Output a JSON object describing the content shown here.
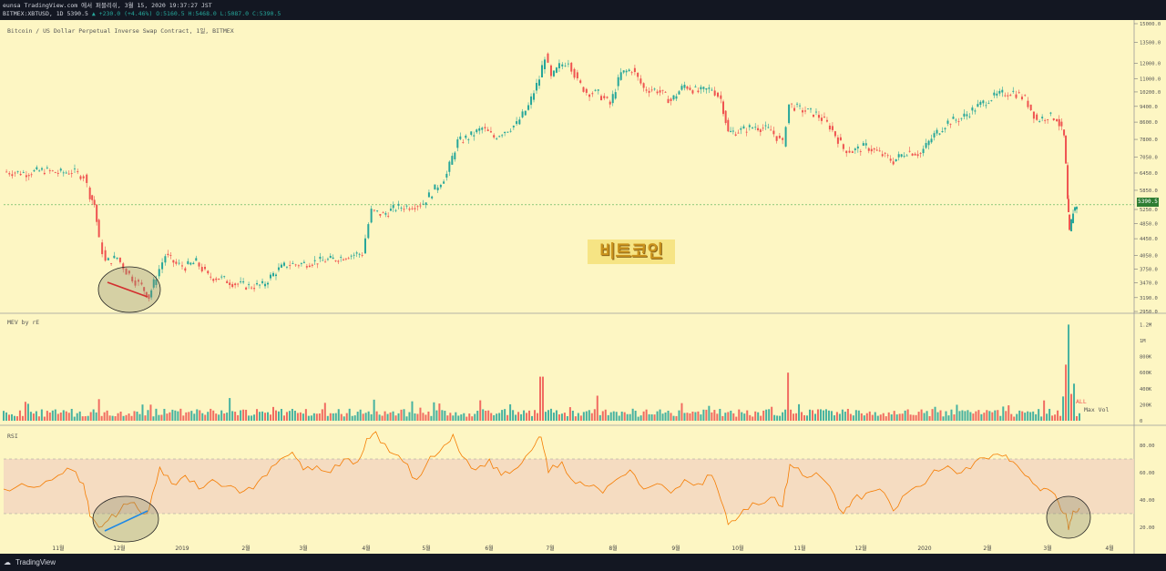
{
  "header": {
    "line1": "eunsa TradingView.com 에서 퍼블리쉬, 3월 15, 2020 19:37:27 JST",
    "symbol": "BITMEX:XBTUSD, 1D 5390.5",
    "change": "▲ +230.0 (+4.46%)",
    "ohlc": "O:5160.5 H:5468.0 L:5087.0 C:5390.5"
  },
  "chart_data": {
    "type": "candlestick",
    "title": "Bitcoin / US Dollar Perpetual Inverse Swap Contract, 1일, BITMEX",
    "last_price": "5390.5",
    "watermark": "비트코인",
    "price_axis_ticks": [
      "15000.0",
      "13500.0",
      "12000.0",
      "11000.0",
      "10200.0",
      "9400.0",
      "8600.0",
      "7800.0",
      "7050.0",
      "6450.0",
      "5850.0",
      "5250.0",
      "4850.0",
      "4450.0",
      "4050.0",
      "3750.0",
      "3470.0",
      "3190.0",
      "2950.0"
    ],
    "price_close_series": [
      {
        "t": 0,
        "v": 6500
      },
      {
        "t": 25,
        "v": 6450
      },
      {
        "t": 45,
        "v": 6550
      },
      {
        "t": 60,
        "v": 6450
      },
      {
        "t": 75,
        "v": 6500
      },
      {
        "t": 88,
        "v": 6350
      },
      {
        "t": 95,
        "v": 5700
      },
      {
        "t": 100,
        "v": 5400
      },
      {
        "t": 105,
        "v": 4400
      },
      {
        "t": 112,
        "v": 3900
      },
      {
        "t": 125,
        "v": 4000
      },
      {
        "t": 135,
        "v": 3700
      },
      {
        "t": 145,
        "v": 3500
      },
      {
        "t": 152,
        "v": 3400
      },
      {
        "t": 160,
        "v": 3200
      },
      {
        "t": 168,
        "v": 3600
      },
      {
        "t": 178,
        "v": 4050
      },
      {
        "t": 190,
        "v": 3850
      },
      {
        "t": 200,
        "v": 3800
      },
      {
        "t": 212,
        "v": 3900
      },
      {
        "t": 225,
        "v": 3600
      },
      {
        "t": 240,
        "v": 3550
      },
      {
        "t": 255,
        "v": 3450
      },
      {
        "t": 270,
        "v": 3400
      },
      {
        "t": 285,
        "v": 3420
      },
      {
        "t": 300,
        "v": 3700
      },
      {
        "t": 312,
        "v": 3850
      },
      {
        "t": 325,
        "v": 3850
      },
      {
        "t": 340,
        "v": 3900
      },
      {
        "t": 360,
        "v": 3950
      },
      {
        "t": 380,
        "v": 4050
      },
      {
        "t": 395,
        "v": 4100
      },
      {
        "t": 405,
        "v": 5200
      },
      {
        "t": 418,
        "v": 5100
      },
      {
        "t": 432,
        "v": 5300
      },
      {
        "t": 447,
        "v": 5350
      },
      {
        "t": 462,
        "v": 5450
      },
      {
        "t": 475,
        "v": 5900
      },
      {
        "t": 488,
        "v": 6400
      },
      {
        "t": 500,
        "v": 7700
      },
      {
        "t": 512,
        "v": 7900
      },
      {
        "t": 527,
        "v": 8300
      },
      {
        "t": 540,
        "v": 7900
      },
      {
        "t": 552,
        "v": 8200
      },
      {
        "t": 565,
        "v": 8500
      },
      {
        "t": 578,
        "v": 9400
      },
      {
        "t": 590,
        "v": 11000
      },
      {
        "t": 596,
        "v": 12500
      },
      {
        "t": 603,
        "v": 11000
      },
      {
        "t": 612,
        "v": 11800
      },
      {
        "t": 622,
        "v": 12200
      },
      {
        "t": 632,
        "v": 10800
      },
      {
        "t": 642,
        "v": 10200
      },
      {
        "t": 655,
        "v": 10100
      },
      {
        "t": 668,
        "v": 9500
      },
      {
        "t": 680,
        "v": 11300
      },
      {
        "t": 692,
        "v": 11600
      },
      {
        "t": 705,
        "v": 10400
      },
      {
        "t": 720,
        "v": 10300
      },
      {
        "t": 735,
        "v": 9700
      },
      {
        "t": 750,
        "v": 10600
      },
      {
        "t": 765,
        "v": 10200
      },
      {
        "t": 780,
        "v": 10400
      },
      {
        "t": 790,
        "v": 9800
      },
      {
        "t": 798,
        "v": 8100
      },
      {
        "t": 812,
        "v": 8200
      },
      {
        "t": 828,
        "v": 8400
      },
      {
        "t": 845,
        "v": 8200
      },
      {
        "t": 858,
        "v": 7600
      },
      {
        "t": 865,
        "v": 9500
      },
      {
        "t": 880,
        "v": 9200
      },
      {
        "t": 895,
        "v": 9000
      },
      {
        "t": 910,
        "v": 8400
      },
      {
        "t": 925,
        "v": 7400
      },
      {
        "t": 935,
        "v": 7300
      },
      {
        "t": 950,
        "v": 7500
      },
      {
        "t": 965,
        "v": 7200
      },
      {
        "t": 980,
        "v": 6900
      },
      {
        "t": 995,
        "v": 7300
      },
      {
        "t": 1010,
        "v": 7200
      },
      {
        "t": 1025,
        "v": 8000
      },
      {
        "t": 1040,
        "v": 8600
      },
      {
        "t": 1055,
        "v": 8800
      },
      {
        "t": 1070,
        "v": 9300
      },
      {
        "t": 1085,
        "v": 9800
      },
      {
        "t": 1100,
        "v": 10100
      },
      {
        "t": 1112,
        "v": 10200
      },
      {
        "t": 1125,
        "v": 9800
      },
      {
        "t": 1138,
        "v": 8700
      },
      {
        "t": 1150,
        "v": 8900
      },
      {
        "t": 1160,
        "v": 8800
      },
      {
        "t": 1168,
        "v": 7900
      },
      {
        "t": 1172,
        "v": 5500
      },
      {
        "t": 1174,
        "v": 4600
      },
      {
        "t": 1178,
        "v": 5200
      },
      {
        "t": 1182,
        "v": 5390
      }
    ],
    "volume_label": "MEV by rE",
    "volume_axis_ticks": [
      "1.2M",
      "1M",
      "800K",
      "600K",
      "400K",
      "200K",
      "0"
    ],
    "volume_badge": "ALL",
    "volume_peak_label": "Max Vol",
    "rsi_label": "RSI",
    "rsi_axis_ticks": [
      "80.00",
      "60.00",
      "40.00",
      "20.00"
    ],
    "rsi_band": [
      30,
      70
    ],
    "rsi_series": [
      {
        "t": 0,
        "v": 48
      },
      {
        "t": 20,
        "v": 52
      },
      {
        "t": 40,
        "v": 50
      },
      {
        "t": 60,
        "v": 58
      },
      {
        "t": 75,
        "v": 62
      },
      {
        "t": 88,
        "v": 52
      },
      {
        "t": 95,
        "v": 28
      },
      {
        "t": 105,
        "v": 20
      },
      {
        "t": 115,
        "v": 25
      },
      {
        "t": 128,
        "v": 32
      },
      {
        "t": 140,
        "v": 38
      },
      {
        "t": 152,
        "v": 30
      },
      {
        "t": 160,
        "v": 33
      },
      {
        "t": 172,
        "v": 64
      },
      {
        "t": 185,
        "v": 52
      },
      {
        "t": 200,
        "v": 58
      },
      {
        "t": 215,
        "v": 48
      },
      {
        "t": 230,
        "v": 55
      },
      {
        "t": 245,
        "v": 50
      },
      {
        "t": 260,
        "v": 45
      },
      {
        "t": 275,
        "v": 48
      },
      {
        "t": 290,
        "v": 58
      },
      {
        "t": 305,
        "v": 70
      },
      {
        "t": 318,
        "v": 75
      },
      {
        "t": 330,
        "v": 62
      },
      {
        "t": 345,
        "v": 65
      },
      {
        "t": 360,
        "v": 60
      },
      {
        "t": 375,
        "v": 70
      },
      {
        "t": 390,
        "v": 68
      },
      {
        "t": 400,
        "v": 85
      },
      {
        "t": 410,
        "v": 90
      },
      {
        "t": 425,
        "v": 75
      },
      {
        "t": 440,
        "v": 68
      },
      {
        "t": 455,
        "v": 55
      },
      {
        "t": 470,
        "v": 72
      },
      {
        "t": 485,
        "v": 80
      },
      {
        "t": 495,
        "v": 88
      },
      {
        "t": 505,
        "v": 72
      },
      {
        "t": 520,
        "v": 62
      },
      {
        "t": 535,
        "v": 70
      },
      {
        "t": 548,
        "v": 58
      },
      {
        "t": 562,
        "v": 62
      },
      {
        "t": 575,
        "v": 72
      },
      {
        "t": 585,
        "v": 80
      },
      {
        "t": 592,
        "v": 86
      },
      {
        "t": 600,
        "v": 60
      },
      {
        "t": 615,
        "v": 68
      },
      {
        "t": 630,
        "v": 52
      },
      {
        "t": 645,
        "v": 50
      },
      {
        "t": 660,
        "v": 45
      },
      {
        "t": 675,
        "v": 55
      },
      {
        "t": 690,
        "v": 62
      },
      {
        "t": 705,
        "v": 48
      },
      {
        "t": 720,
        "v": 52
      },
      {
        "t": 735,
        "v": 45
      },
      {
        "t": 750,
        "v": 55
      },
      {
        "t": 765,
        "v": 52
      },
      {
        "t": 780,
        "v": 58
      },
      {
        "t": 790,
        "v": 40
      },
      {
        "t": 798,
        "v": 22
      },
      {
        "t": 810,
        "v": 28
      },
      {
        "t": 825,
        "v": 38
      },
      {
        "t": 845,
        "v": 42
      },
      {
        "t": 858,
        "v": 35
      },
      {
        "t": 866,
        "v": 66
      },
      {
        "t": 880,
        "v": 58
      },
      {
        "t": 895,
        "v": 60
      },
      {
        "t": 910,
        "v": 50
      },
      {
        "t": 925,
        "v": 30
      },
      {
        "t": 935,
        "v": 40
      },
      {
        "t": 950,
        "v": 45
      },
      {
        "t": 965,
        "v": 48
      },
      {
        "t": 980,
        "v": 32
      },
      {
        "t": 995,
        "v": 45
      },
      {
        "t": 1010,
        "v": 50
      },
      {
        "t": 1025,
        "v": 62
      },
      {
        "t": 1040,
        "v": 65
      },
      {
        "t": 1055,
        "v": 60
      },
      {
        "t": 1070,
        "v": 68
      },
      {
        "t": 1085,
        "v": 70
      },
      {
        "t": 1100,
        "v": 72
      },
      {
        "t": 1112,
        "v": 68
      },
      {
        "t": 1125,
        "v": 58
      },
      {
        "t": 1138,
        "v": 50
      },
      {
        "t": 1150,
        "v": 48
      },
      {
        "t": 1162,
        "v": 38
      },
      {
        "t": 1170,
        "v": 30
      },
      {
        "t": 1173,
        "v": 18
      },
      {
        "t": 1178,
        "v": 32
      },
      {
        "t": 1185,
        "v": 34
      }
    ],
    "x_tick_labels": [
      "11월",
      "12월",
      "2019",
      "2월",
      "3월",
      "4월",
      "5월",
      "6월",
      "7월",
      "8월",
      "9월",
      "10월",
      "11월",
      "12월",
      "2020",
      "2월",
      "3월",
      "4월"
    ],
    "grid": false
  },
  "footer": {
    "brand": "TradingView"
  },
  "colors": {
    "background": "#fdf6c3",
    "up": "#26a69a",
    "down": "#ef5350",
    "rsi": "#f57c00",
    "band": "#f3d6c0",
    "frame": "#131722"
  }
}
